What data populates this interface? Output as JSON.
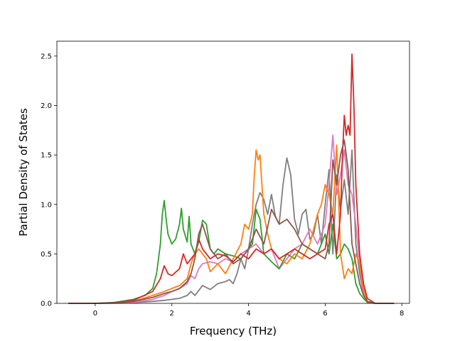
{
  "chart_data": {
    "type": "line",
    "title": "",
    "xlabel": "Frequency (THz)",
    "ylabel": "Partial Density of States",
    "xlim": [
      -1.0,
      8.2
    ],
    "ylim": [
      0.0,
      2.65
    ],
    "xticks": [
      0,
      2,
      4,
      6,
      8
    ],
    "xtick_labels": [
      "0",
      "2",
      "4",
      "6",
      "8"
    ],
    "yticks": [
      0.0,
      0.5,
      1.0,
      1.5,
      2.0,
      2.5
    ],
    "ytick_labels": [
      "0.0",
      "0.5",
      "1.0",
      "1.5",
      "2.0",
      "2.5"
    ],
    "grid": false,
    "legend": "none",
    "series": [
      {
        "color": "#7f7f7f",
        "x": [
          -0.7,
          0.0,
          0.5,
          1.0,
          1.5,
          1.8,
          2.0,
          2.2,
          2.4,
          2.5,
          2.6,
          2.7,
          2.8,
          3.0,
          3.2,
          3.4,
          3.5,
          3.6,
          3.7,
          3.8,
          3.9,
          4.0,
          4.1,
          4.2,
          4.3,
          4.4,
          4.5,
          4.6,
          4.7,
          4.8,
          4.9,
          5.0,
          5.1,
          5.2,
          5.3,
          5.4,
          5.5,
          5.6,
          5.7,
          5.8,
          5.9,
          6.0,
          6.1,
          6.2,
          6.3,
          6.4,
          6.5,
          6.6,
          6.7,
          6.8,
          6.9,
          7.0,
          7.1,
          7.3,
          7.8
        ],
        "y": [
          0,
          0,
          0.002,
          0.008,
          0.02,
          0.03,
          0.04,
          0.05,
          0.08,
          0.12,
          0.08,
          0.13,
          0.18,
          0.14,
          0.2,
          0.22,
          0.24,
          0.2,
          0.3,
          0.45,
          0.35,
          0.55,
          0.8,
          1.0,
          1.12,
          1.05,
          0.9,
          1.1,
          0.88,
          0.8,
          1.2,
          1.47,
          1.3,
          0.85,
          0.7,
          0.9,
          0.95,
          0.65,
          0.7,
          0.9,
          0.6,
          1.0,
          1.35,
          0.5,
          1.3,
          0.95,
          1.25,
          0.9,
          1.55,
          0.6,
          0.3,
          0.1,
          0.02,
          0,
          0
        ]
      },
      {
        "color": "#e377c2",
        "x": [
          -0.7,
          0.0,
          0.5,
          1.0,
          1.5,
          1.8,
          2.0,
          2.2,
          2.4,
          2.5,
          2.6,
          2.7,
          2.8,
          3.0,
          3.2,
          3.4,
          3.6,
          3.8,
          4.0,
          4.2,
          4.4,
          4.6,
          4.8,
          5.0,
          5.2,
          5.4,
          5.6,
          5.8,
          6.0,
          6.1,
          6.2,
          6.3,
          6.4,
          6.5,
          6.6,
          6.7,
          6.8,
          6.9,
          7.0,
          7.1,
          7.3,
          7.8
        ],
        "y": [
          0,
          0,
          0.003,
          0.01,
          0.04,
          0.08,
          0.12,
          0.15,
          0.2,
          0.28,
          0.25,
          0.35,
          0.4,
          0.42,
          0.4,
          0.45,
          0.42,
          0.5,
          0.55,
          0.6,
          0.5,
          0.55,
          0.35,
          0.45,
          0.55,
          0.6,
          0.75,
          0.6,
          0.8,
          1.2,
          1.7,
          1.1,
          1.3,
          1.55,
          1.2,
          1.1,
          0.8,
          0.4,
          0.1,
          0.02,
          0,
          0
        ]
      },
      {
        "color": "#2ca02c",
        "x": [
          -0.7,
          0.0,
          0.5,
          1.0,
          1.3,
          1.5,
          1.6,
          1.7,
          1.75,
          1.8,
          1.85,
          1.9,
          2.0,
          2.1,
          2.2,
          2.25,
          2.3,
          2.4,
          2.45,
          2.5,
          2.6,
          2.7,
          2.8,
          2.9,
          3.0,
          3.1,
          3.2,
          3.4,
          3.6,
          3.8,
          4.0,
          4.1,
          4.2,
          4.3,
          4.4,
          4.6,
          4.8,
          5.0,
          5.2,
          5.4,
          5.6,
          5.8,
          6.0,
          6.1,
          6.2,
          6.3,
          6.4,
          6.5,
          6.6,
          6.7,
          6.8,
          6.9,
          7.0,
          7.1,
          7.3,
          7.8
        ],
        "y": [
          0,
          0,
          0.01,
          0.04,
          0.08,
          0.15,
          0.3,
          0.6,
          0.9,
          1.04,
          0.85,
          0.7,
          0.6,
          0.65,
          0.8,
          0.96,
          0.75,
          0.62,
          0.88,
          0.6,
          0.5,
          0.62,
          0.84,
          0.8,
          0.55,
          0.5,
          0.55,
          0.5,
          0.48,
          0.45,
          0.55,
          0.6,
          0.95,
          0.85,
          0.5,
          0.42,
          0.35,
          0.5,
          0.45,
          0.6,
          0.55,
          0.5,
          0.7,
          0.5,
          0.8,
          0.45,
          0.5,
          0.6,
          0.55,
          0.45,
          0.2,
          0.1,
          0.05,
          0.01,
          0,
          0
        ]
      },
      {
        "color": "#ff7f0e",
        "x": [
          -0.7,
          0.0,
          0.5,
          1.0,
          1.5,
          1.8,
          2.0,
          2.2,
          2.4,
          2.5,
          2.6,
          2.7,
          2.8,
          2.9,
          3.0,
          3.2,
          3.4,
          3.6,
          3.8,
          3.9,
          4.0,
          4.1,
          4.15,
          4.2,
          4.25,
          4.3,
          4.4,
          4.5,
          4.6,
          4.8,
          5.0,
          5.2,
          5.4,
          5.6,
          5.8,
          5.9,
          6.0,
          6.1,
          6.2,
          6.3,
          6.4,
          6.5,
          6.6,
          6.7,
          6.8,
          6.9,
          7.0,
          7.1,
          7.3,
          7.8
        ],
        "y": [
          0,
          0,
          0.005,
          0.02,
          0.08,
          0.12,
          0.15,
          0.18,
          0.25,
          0.4,
          0.5,
          0.55,
          0.5,
          0.45,
          0.32,
          0.4,
          0.3,
          0.45,
          0.6,
          0.8,
          0.75,
          0.9,
          1.3,
          1.55,
          1.45,
          1.5,
          0.9,
          0.7,
          0.55,
          0.45,
          0.4,
          0.5,
          0.45,
          0.6,
          0.9,
          1.0,
          1.2,
          1.1,
          0.9,
          1.6,
          0.5,
          0.25,
          0.35,
          0.3,
          0.5,
          0.4,
          0.15,
          0.02,
          0,
          0
        ]
      },
      {
        "color": "#d62728",
        "x": [
          -0.7,
          0.0,
          0.5,
          1.0,
          1.5,
          1.7,
          1.8,
          1.9,
          2.0,
          2.2,
          2.3,
          2.4,
          2.6,
          2.7,
          2.8,
          3.0,
          3.2,
          3.4,
          3.6,
          3.8,
          4.0,
          4.2,
          4.4,
          4.6,
          4.8,
          5.0,
          5.2,
          5.4,
          5.6,
          5.8,
          6.0,
          6.1,
          6.2,
          6.3,
          6.4,
          6.45,
          6.5,
          6.55,
          6.6,
          6.65,
          6.7,
          6.75,
          6.8,
          6.9,
          7.0,
          7.1,
          7.3,
          7.8
        ],
        "y": [
          0,
          0,
          0.005,
          0.03,
          0.12,
          0.25,
          0.38,
          0.3,
          0.28,
          0.35,
          0.5,
          0.4,
          0.5,
          0.65,
          0.55,
          0.45,
          0.5,
          0.48,
          0.42,
          0.5,
          0.45,
          0.55,
          0.5,
          0.55,
          0.45,
          0.5,
          0.55,
          0.5,
          0.45,
          0.5,
          0.55,
          0.8,
          0.9,
          0.5,
          0.9,
          1.5,
          1.9,
          1.7,
          1.8,
          1.7,
          2.52,
          2.0,
          1.2,
          0.5,
          0.2,
          0.05,
          0,
          0
        ]
      },
      {
        "color": "#8c564b",
        "x": [
          -0.7,
          0.0,
          0.5,
          1.0,
          1.5,
          1.8,
          2.0,
          2.2,
          2.4,
          2.5,
          2.6,
          2.7,
          2.8,
          3.0,
          3.2,
          3.4,
          3.6,
          3.8,
          4.0,
          4.2,
          4.4,
          4.6,
          4.8,
          5.0,
          5.2,
          5.4,
          5.6,
          5.8,
          6.0,
          6.1,
          6.2,
          6.3,
          6.4,
          6.5,
          6.6,
          6.7,
          6.8,
          6.9,
          7.0,
          7.1,
          7.3,
          7.8
        ],
        "y": [
          0,
          0,
          0.004,
          0.02,
          0.06,
          0.1,
          0.12,
          0.15,
          0.22,
          0.3,
          0.45,
          0.7,
          0.8,
          0.55,
          0.45,
          0.5,
          0.4,
          0.45,
          0.55,
          0.75,
          0.6,
          0.95,
          0.8,
          0.85,
          0.75,
          0.6,
          0.55,
          0.5,
          0.45,
          0.6,
          1.45,
          1.2,
          1.5,
          1.65,
          1.35,
          0.6,
          0.4,
          0.2,
          0.08,
          0.02,
          0,
          0
        ]
      }
    ]
  }
}
